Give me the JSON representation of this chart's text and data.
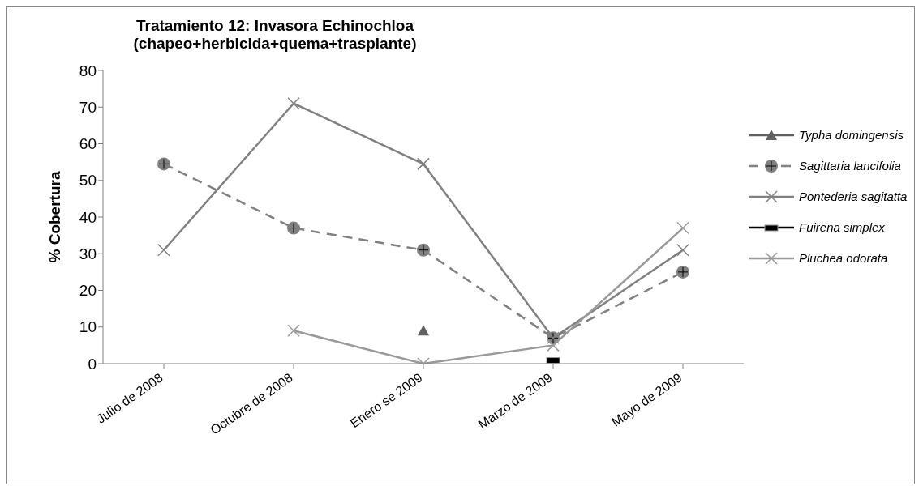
{
  "chart_data": {
    "type": "line",
    "title": "Tratamiento 12: Invasora Echinochloa\n(chapeo+herbicida+quema+trasplante)",
    "ylabel": "% Cobertura",
    "categories": [
      "Julio de 2008",
      "Octubre de 2008",
      "Enero se 2009",
      "Marzo de 2009",
      "Mayo de 2009"
    ],
    "ylim": [
      0,
      80
    ],
    "yticks": [
      0,
      10,
      20,
      30,
      40,
      50,
      60,
      70,
      80
    ],
    "legend": "right",
    "series": [
      {
        "name": "Typha domingensis",
        "color": "#606060",
        "marker": "triangle",
        "line_style": "solid",
        "values": [
          null,
          null,
          9,
          null,
          null
        ]
      },
      {
        "name": "Sagittaria lancifolia",
        "color": "#808080",
        "marker": "circle",
        "line_style": "dashed",
        "values": [
          54.5,
          37,
          31,
          7,
          25
        ]
      },
      {
        "name": "Pontederia sagitatta",
        "color": "#808080",
        "marker": "cross",
        "line_style": "solid",
        "values": [
          31,
          71,
          54.5,
          7,
          31
        ]
      },
      {
        "name": "Fuirena simplex",
        "color": "#000000",
        "marker": "square",
        "line_style": "solid",
        "values": [
          null,
          null,
          null,
          1,
          null
        ]
      },
      {
        "name": "Pluchea odorata",
        "color": "#999999",
        "marker": "cross",
        "line_style": "solid",
        "values": [
          null,
          9,
          0,
          5,
          37
        ]
      }
    ]
  }
}
